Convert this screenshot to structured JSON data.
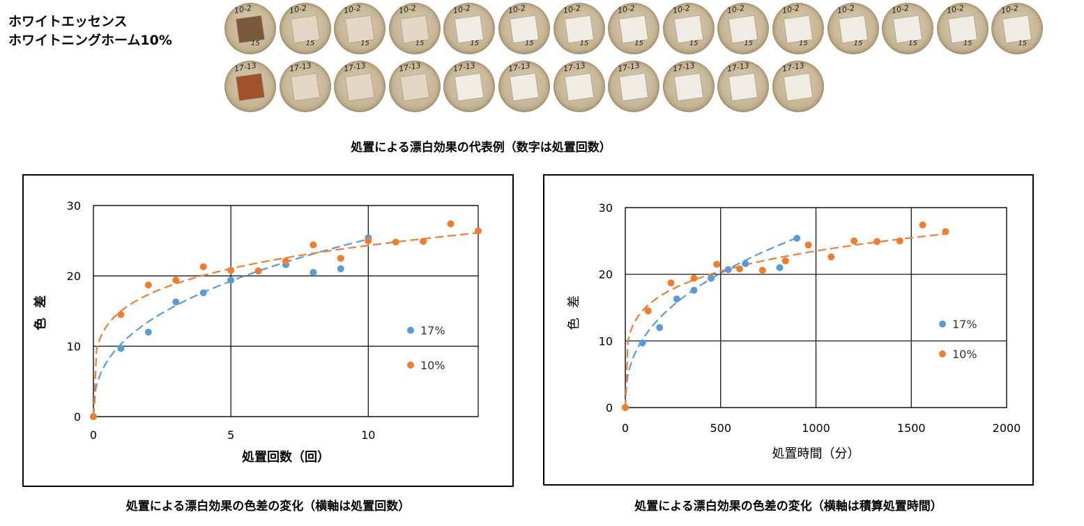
{
  "header": {
    "line1": "ホワイトエッセンス",
    "line2": "ホワイトニングホーム10%"
  },
  "samples": {
    "row1_label": "10-2",
    "row1_number": "15",
    "row1_count": 15,
    "row2_label": "17-13",
    "row2_count": 11,
    "row1_first_color": "#7a5a3a",
    "row2_first_color": "#a0522d"
  },
  "captions": {
    "photos": "処置による漂白効果の代表例（数字は処置回数）",
    "chart1": "処置による漂白効果の色差の変化（横軸は処置回数）",
    "chart2": "処置による漂白効果の色差の変化（横軸は積算処置時間）"
  },
  "colors": {
    "blue": "#5b9bd5",
    "orange": "#ed7d31"
  },
  "chart_data": [
    {
      "type": "scatter",
      "xlabel": "処置回数（回）",
      "ylabel": "色差",
      "xlim": [
        0,
        14
      ],
      "ylim": [
        0,
        30
      ],
      "xticks": [
        0,
        5,
        10
      ],
      "yticks": [
        0,
        10,
        20,
        30
      ],
      "grid": true,
      "legend": "right",
      "series": [
        {
          "name": "17%",
          "color": "#5b9bd5",
          "x": [
            0,
            1,
            2,
            3,
            4,
            5,
            6,
            7,
            8,
            9,
            10
          ],
          "y": [
            0,
            9.7,
            12,
            16.3,
            17.6,
            19.4,
            20.7,
            21.6,
            20.5,
            21,
            25.4
          ],
          "trend": {
            "a": 10.3,
            "b": 0.389,
            "xmax": 10
          }
        },
        {
          "name": "10%",
          "color": "#ed7d31",
          "x": [
            0,
            1,
            2,
            3,
            4,
            5,
            6,
            7,
            8,
            9,
            10,
            11,
            12,
            13,
            14
          ],
          "y": [
            0,
            14.5,
            18.7,
            19.4,
            21.3,
            20.8,
            20.7,
            22.1,
            24.4,
            22.5,
            25,
            24.8,
            24.9,
            27.4,
            26.4
          ],
          "trend": {
            "a": 15,
            "b": 0.21,
            "xmax": 14
          }
        }
      ]
    },
    {
      "type": "scatter",
      "xlabel": "処置時間（分）",
      "ylabel": "色差",
      "xlim": [
        0,
        2000
      ],
      "ylim": [
        0,
        30
      ],
      "xticks": [
        0,
        500,
        1000,
        1500,
        2000
      ],
      "yticks": [
        0,
        10,
        20,
        30
      ],
      "grid": true,
      "legend": "right",
      "series": [
        {
          "name": "17%",
          "color": "#5b9bd5",
          "x": [
            0,
            90,
            180,
            270,
            360,
            450,
            540,
            630,
            810,
            900
          ],
          "y": [
            0,
            9.7,
            12,
            16.3,
            17.6,
            19.4,
            20.7,
            21.6,
            21,
            25.4
          ],
          "trend": {
            "a": 1.71,
            "b": 0.397,
            "xmax": 900
          }
        },
        {
          "name": "10%",
          "color": "#ed7d31",
          "x": [
            0,
            120,
            240,
            360,
            480,
            600,
            720,
            840,
            960,
            1080,
            1200,
            1320,
            1440,
            1560,
            1680
          ],
          "y": [
            0,
            14.5,
            18.7,
            19.4,
            21.5,
            20.8,
            20.6,
            22,
            24.4,
            22.6,
            25,
            24.9,
            25,
            27.4,
            26.4
          ],
          "trend": {
            "a": 5.9,
            "b": 0.2,
            "xmax": 1680
          }
        }
      ]
    }
  ]
}
